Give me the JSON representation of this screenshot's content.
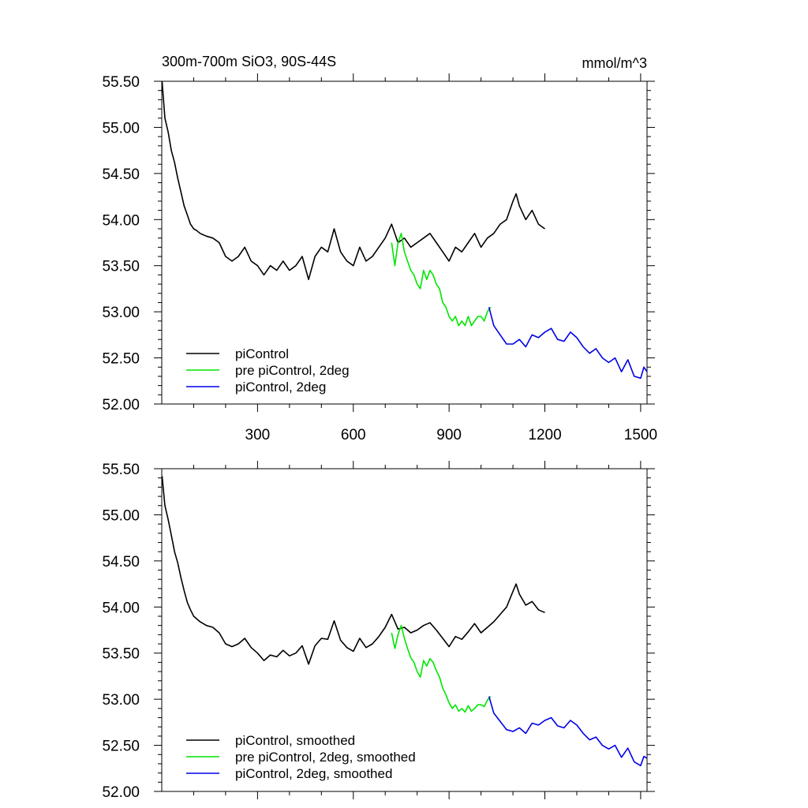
{
  "chart_data": [
    {
      "type": "line",
      "title": "300m-700m SiO3, 90S-44S",
      "units": "mmol/m^3",
      "xlim": [
        0,
        1520
      ],
      "ylim": [
        52.0,
        55.5
      ],
      "xticks": [
        300,
        600,
        900,
        1200,
        1500
      ],
      "xtick_labels": [
        "300",
        "600",
        "900",
        "1200",
        "1500"
      ],
      "yticks": [
        52.0,
        52.5,
        53.0,
        53.5,
        54.0,
        54.5,
        55.0,
        55.5
      ],
      "ytick_labels": [
        "52.00",
        "52.50",
        "53.00",
        "53.50",
        "54.00",
        "54.50",
        "55.00",
        "55.50"
      ],
      "series": [
        {
          "name": "piControl",
          "color": "#000000",
          "x": [
            1,
            10,
            20,
            30,
            40,
            50,
            60,
            70,
            80,
            90,
            100,
            110,
            120,
            140,
            160,
            180,
            200,
            220,
            240,
            260,
            280,
            300,
            320,
            340,
            360,
            380,
            400,
            420,
            440,
            460,
            480,
            500,
            520,
            540,
            560,
            580,
            600,
            620,
            640,
            660,
            680,
            700,
            720,
            740,
            760,
            780,
            800,
            820,
            840,
            860,
            880,
            900,
            920,
            940,
            960,
            980,
            1000,
            1020,
            1040,
            1060,
            1080,
            1100,
            1110,
            1120,
            1140,
            1160,
            1180,
            1200
          ],
          "y": [
            55.5,
            55.1,
            54.95,
            54.75,
            54.62,
            54.45,
            54.3,
            54.15,
            54.05,
            53.95,
            53.9,
            53.88,
            53.85,
            53.82,
            53.8,
            53.75,
            53.6,
            53.55,
            53.6,
            53.7,
            53.55,
            53.5,
            53.4,
            53.5,
            53.45,
            53.55,
            53.45,
            53.5,
            53.6,
            53.35,
            53.6,
            53.7,
            53.65,
            53.9,
            53.65,
            53.55,
            53.5,
            53.7,
            53.55,
            53.6,
            53.7,
            53.8,
            53.95,
            53.75,
            53.8,
            53.7,
            53.75,
            53.8,
            53.85,
            53.75,
            53.65,
            53.55,
            53.7,
            53.65,
            53.75,
            53.85,
            53.7,
            53.8,
            53.85,
            53.95,
            54.0,
            54.2,
            54.28,
            54.15,
            54.0,
            54.1,
            53.95,
            53.9
          ]
        },
        {
          "name": "pre piControl, 2deg",
          "color": "#00e600",
          "x": [
            720,
            730,
            740,
            750,
            760,
            770,
            780,
            790,
            800,
            810,
            820,
            830,
            840,
            850,
            860,
            870,
            880,
            890,
            900,
            910,
            920,
            930,
            940,
            950,
            960,
            970,
            980,
            990,
            1000,
            1010,
            1020,
            1030
          ],
          "y": [
            53.75,
            53.5,
            53.75,
            53.85,
            53.65,
            53.55,
            53.45,
            53.4,
            53.3,
            53.25,
            53.45,
            53.35,
            53.45,
            53.4,
            53.3,
            53.25,
            53.1,
            53.05,
            52.95,
            52.9,
            52.95,
            52.85,
            52.9,
            52.85,
            52.95,
            52.85,
            52.9,
            52.95,
            52.95,
            52.9,
            53.0,
            53.05
          ]
        },
        {
          "name": "piControl, 2deg",
          "color": "#0000e6",
          "x": [
            1025,
            1040,
            1060,
            1080,
            1100,
            1120,
            1140,
            1160,
            1180,
            1200,
            1220,
            1240,
            1260,
            1280,
            1300,
            1320,
            1340,
            1360,
            1380,
            1400,
            1420,
            1440,
            1460,
            1480,
            1500,
            1510,
            1520
          ],
          "y": [
            53.05,
            52.85,
            52.75,
            52.65,
            52.65,
            52.7,
            52.62,
            52.75,
            52.72,
            52.78,
            52.82,
            52.7,
            52.68,
            52.78,
            52.72,
            52.62,
            52.55,
            52.6,
            52.5,
            52.45,
            52.5,
            52.35,
            52.48,
            52.3,
            52.28,
            52.4,
            52.35
          ]
        }
      ],
      "legend": {
        "position": "bottom-left",
        "entries": [
          "piControl",
          "pre piControl, 2deg",
          "piControl, 2deg"
        ]
      }
    },
    {
      "type": "line",
      "title": "",
      "units": "",
      "xlim": [
        0,
        1520
      ],
      "ylim": [
        52.0,
        55.5
      ],
      "xticks": [
        300,
        600,
        900,
        1200,
        1500
      ],
      "xtick_labels": [],
      "yticks": [
        52.0,
        52.5,
        53.0,
        53.5,
        54.0,
        54.5,
        55.0,
        55.5
      ],
      "ytick_labels": [
        "52.00",
        "52.50",
        "53.00",
        "53.50",
        "54.00",
        "54.50",
        "55.00",
        "55.50"
      ],
      "series": [
        {
          "name": "piControl, smoothed",
          "color": "#000000",
          "x": [
            1,
            10,
            20,
            30,
            40,
            50,
            60,
            70,
            80,
            90,
            100,
            110,
            120,
            140,
            160,
            180,
            200,
            220,
            240,
            260,
            280,
            300,
            320,
            340,
            360,
            380,
            400,
            420,
            440,
            460,
            480,
            500,
            520,
            540,
            560,
            580,
            600,
            620,
            640,
            660,
            680,
            700,
            720,
            740,
            760,
            780,
            800,
            820,
            840,
            860,
            880,
            900,
            920,
            940,
            960,
            980,
            1000,
            1020,
            1040,
            1060,
            1080,
            1100,
            1110,
            1120,
            1140,
            1160,
            1180,
            1200
          ],
          "y": [
            55.42,
            55.1,
            54.95,
            54.78,
            54.6,
            54.48,
            54.32,
            54.18,
            54.05,
            53.97,
            53.9,
            53.87,
            53.84,
            53.8,
            53.78,
            53.72,
            53.6,
            53.57,
            53.6,
            53.66,
            53.56,
            53.5,
            53.42,
            53.48,
            53.46,
            53.53,
            53.47,
            53.5,
            53.58,
            53.38,
            53.58,
            53.66,
            53.65,
            53.85,
            53.64,
            53.56,
            53.52,
            53.66,
            53.56,
            53.6,
            53.68,
            53.78,
            53.92,
            53.76,
            53.78,
            53.72,
            53.75,
            53.8,
            53.83,
            53.75,
            53.66,
            53.57,
            53.68,
            53.65,
            53.73,
            53.82,
            53.72,
            53.78,
            53.84,
            53.92,
            54.0,
            54.17,
            54.25,
            54.14,
            54.02,
            54.06,
            53.97,
            53.94
          ]
        },
        {
          "name": "pre piControl, 2deg, smoothed",
          "color": "#00e600",
          "x": [
            720,
            730,
            740,
            750,
            760,
            770,
            780,
            790,
            800,
            810,
            820,
            830,
            840,
            850,
            860,
            870,
            880,
            890,
            900,
            910,
            920,
            930,
            940,
            950,
            960,
            970,
            980,
            990,
            1000,
            1010,
            1020,
            1030
          ],
          "y": [
            53.72,
            53.55,
            53.7,
            53.8,
            53.66,
            53.55,
            53.45,
            53.4,
            53.3,
            53.24,
            53.42,
            53.36,
            53.44,
            53.4,
            53.31,
            53.24,
            53.12,
            53.05,
            52.96,
            52.9,
            52.94,
            52.87,
            52.9,
            52.86,
            52.93,
            52.87,
            52.9,
            52.94,
            52.94,
            52.92,
            52.99,
            53.03
          ]
        },
        {
          "name": "piControl, 2deg, smoothed",
          "color": "#0000e6",
          "x": [
            1025,
            1040,
            1060,
            1080,
            1100,
            1120,
            1140,
            1160,
            1180,
            1200,
            1220,
            1240,
            1260,
            1280,
            1300,
            1320,
            1340,
            1360,
            1380,
            1400,
            1420,
            1440,
            1460,
            1480,
            1500,
            1510,
            1520
          ],
          "y": [
            53.03,
            52.85,
            52.76,
            52.67,
            52.65,
            52.69,
            52.63,
            52.74,
            52.72,
            52.77,
            52.8,
            52.71,
            52.69,
            52.77,
            52.72,
            52.63,
            52.56,
            52.59,
            52.5,
            52.46,
            52.5,
            52.37,
            52.47,
            52.32,
            52.28,
            52.38,
            52.36
          ]
        }
      ],
      "legend": {
        "position": "bottom-left",
        "entries": [
          "piControl, smoothed",
          "pre piControl, 2deg, smoothed",
          "piControl, 2deg, smoothed"
        ]
      }
    }
  ]
}
